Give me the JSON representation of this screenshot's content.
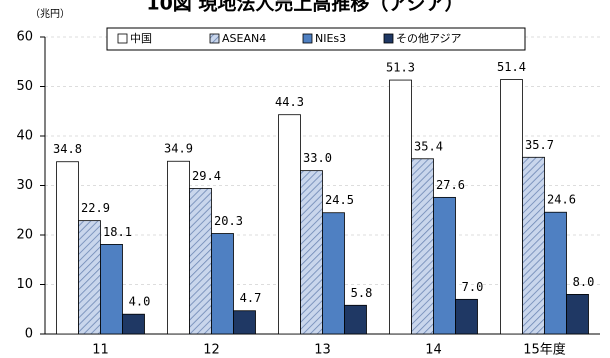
{
  "chart_data": {
    "type": "bar",
    "title": "10図 現地法人売上高推移（アジア）",
    "y_unit": "（兆円）",
    "categories": [
      "11",
      "12",
      "13",
      "14",
      "15年度"
    ],
    "series": [
      {
        "name": "中国",
        "color": "#ffffff",
        "values": [
          34.8,
          34.9,
          44.3,
          51.3,
          51.4
        ],
        "value_labels": [
          "34.8",
          "34.9",
          "44.3",
          "51.3",
          "51.4"
        ]
      },
      {
        "name": "ASEAN4",
        "color": "#c9d6ec",
        "pattern": "hatch",
        "values": [
          22.9,
          29.4,
          33.0,
          35.4,
          35.7
        ],
        "value_labels": [
          "22.9",
          "29.4",
          "33.0",
          "35.4",
          "35.7"
        ]
      },
      {
        "name": "NIEs3",
        "color": "#4f80c2",
        "values": [
          18.1,
          20.3,
          24.5,
          27.6,
          24.6
        ],
        "value_labels": [
          "18.1",
          "20.3",
          "24.5",
          "27.6",
          "24.6"
        ]
      },
      {
        "name": "その他アジア",
        "color": "#1f3864",
        "values": [
          4.0,
          4.7,
          5.8,
          7.0,
          8.0
        ],
        "value_labels": [
          "4.0",
          "4.7",
          "5.8",
          "7.0",
          "8.0"
        ]
      }
    ],
    "ylim": [
      0,
      60
    ],
    "yticks": [
      0,
      10,
      20,
      30,
      40,
      50,
      60
    ],
    "grid": true,
    "legend": "top"
  }
}
